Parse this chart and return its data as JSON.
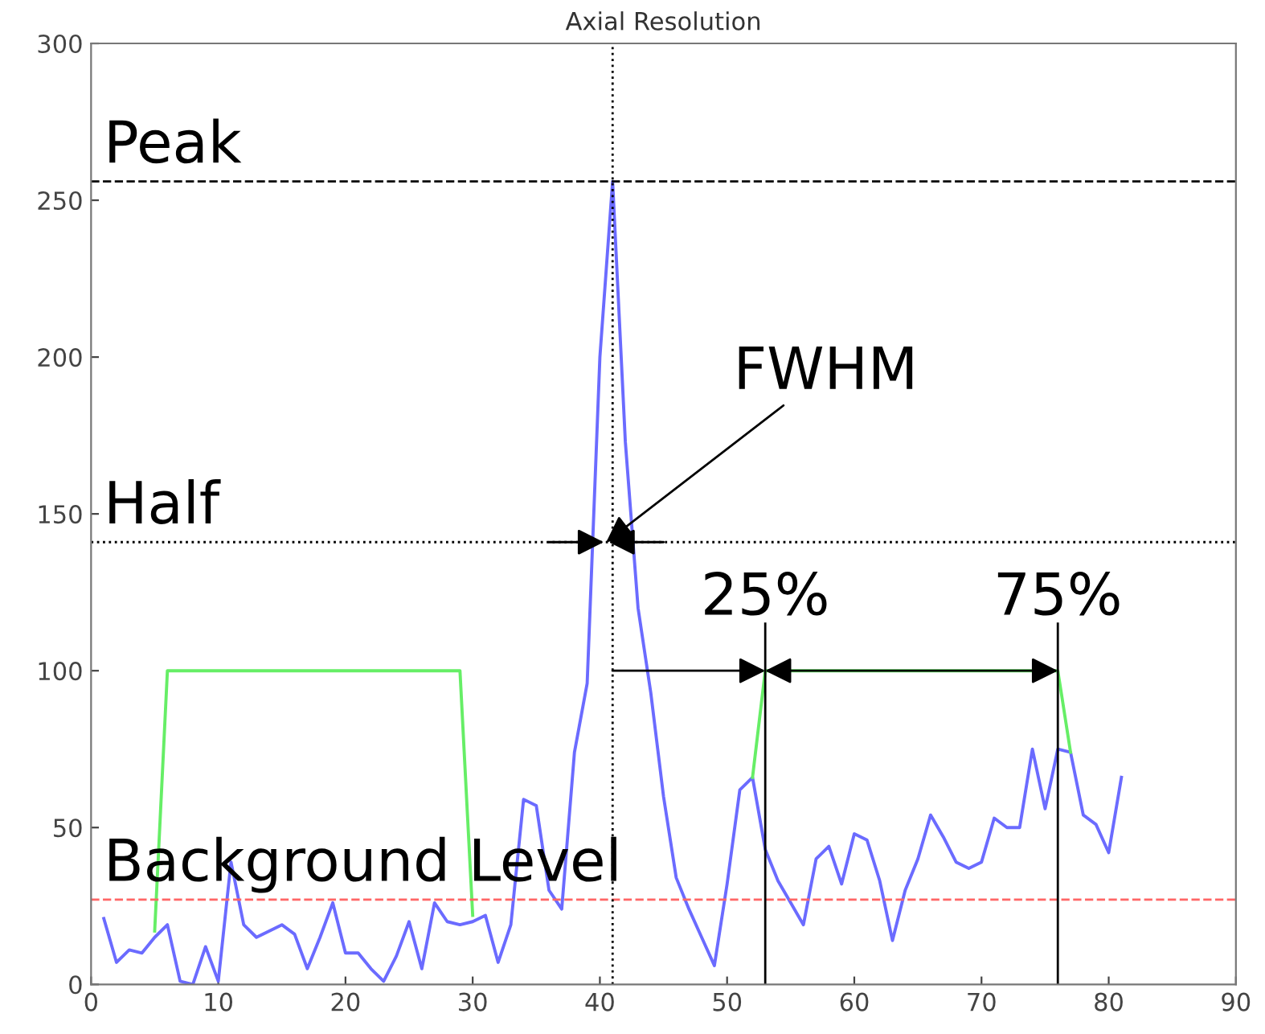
{
  "chart_data": {
    "type": "line",
    "title": "Axial Resolution",
    "x": [
      1,
      2,
      3,
      4,
      5,
      6,
      7,
      8,
      9,
      10,
      11,
      12,
      13,
      14,
      15,
      16,
      17,
      18,
      19,
      20,
      21,
      22,
      23,
      24,
      25,
      26,
      27,
      28,
      29,
      30,
      31,
      32,
      33,
      34,
      35,
      36,
      37,
      38,
      39,
      40,
      41,
      42,
      43,
      44,
      45,
      46,
      47,
      48,
      49,
      50,
      51,
      52,
      53,
      54,
      55,
      56,
      57,
      58,
      59,
      60,
      61,
      62,
      63,
      64,
      65,
      66,
      67,
      68,
      69,
      70,
      71,
      72,
      73,
      74,
      75,
      76,
      77,
      78,
      79,
      80,
      81
    ],
    "series": [
      {
        "color": "#6b6bff",
        "values": [
          21,
          7,
          11,
          10,
          15,
          19,
          1,
          0,
          12,
          1,
          39,
          19,
          15,
          17,
          19,
          16,
          5,
          15,
          26,
          10,
          10,
          5,
          1,
          9,
          20,
          5,
          26,
          20,
          19,
          20,
          22,
          7,
          19,
          59,
          57,
          30,
          24,
          74,
          96,
          200,
          256,
          173,
          120,
          93,
          60,
          34,
          24,
          15,
          6,
          32,
          62,
          66,
          43,
          33,
          26,
          19,
          40,
          44,
          32,
          48,
          46,
          33,
          14,
          30,
          40,
          54,
          47,
          39,
          37,
          39,
          53,
          50,
          50,
          75,
          56,
          75,
          74,
          54,
          51,
          42,
          66
        ]
      },
      {
        "type": "line",
        "color": "#66ee66",
        "x": [
          5,
          6,
          29,
          30,
          41,
          52,
          53,
          76,
          77
        ],
        "values": [
          17,
          100,
          100,
          22,
          null,
          66,
          100,
          100,
          74
        ]
      }
    ],
    "xlim": [
      0,
      90
    ],
    "xticks": [
      0,
      10,
      20,
      30,
      40,
      50,
      60,
      70,
      80,
      90
    ],
    "ylim": [
      0,
      300
    ],
    "yticks": [
      0,
      50,
      100,
      150,
      200,
      250,
      300
    ],
    "grid": false,
    "legend": false,
    "marker": "none",
    "line_style": "solid",
    "ref_lines": [
      {
        "axis": "y",
        "value": 256,
        "label": "Peak",
        "color": "#000000",
        "line_style": "dashed"
      },
      {
        "axis": "y",
        "value": 141,
        "label": "Half",
        "color": "#000000",
        "line_style": "dotted"
      },
      {
        "axis": "y",
        "value": 27,
        "label": "Background Level",
        "color": "#ff6666",
        "line_style": "dashed"
      },
      {
        "axis": "x",
        "value": 41,
        "color": "#000000",
        "line_style": "dotted"
      }
    ],
    "annotations": [
      {
        "text": "FWHM",
        "x": 40.5,
        "y": 141
      },
      {
        "text": "25%",
        "x": 53,
        "y": 100
      },
      {
        "text": "75%",
        "x": 76,
        "y": 100
      }
    ]
  }
}
